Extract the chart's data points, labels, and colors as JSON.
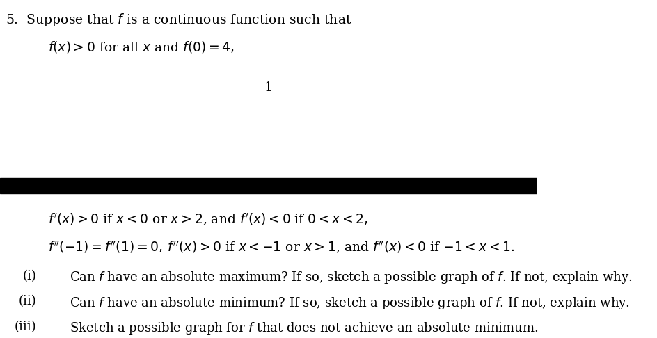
{
  "bg_color": "#ffffff",
  "title_text": "5.  Suppose that $f$ is a continuous function such that",
  "line1_text": "$f(x) > 0$ for all $x$ and $f(0) = 4,$",
  "page_number": "1",
  "line2_text": "$f'(x) > 0$ if $x < 0$ or $x > 2$, and $f'(x) < 0$ if $0 < x < 2,$",
  "line3_text": "$f''(-1) = f''(1) = 0,  f''(x) > 0$ if $x < -1$ or $x > 1$, and $f''(x) < 0$ if $-1 < x < 1.$",
  "item_i_label": "(i)",
  "item_i_text": "Can $f$ have an absolute maximum? If so, sketch a possible graph of $f$. If not, explain why.",
  "item_ii_label": "(ii)",
  "item_ii_text": "Can $f$ have an absolute minimum? If so, sketch a possible graph of $f$. If not, explain why.",
  "item_iii_label": "(iii)",
  "item_iii_text": "Sketch a possible graph for $f$ that does not achieve an absolute minimum.",
  "fontsize_title": 13.5,
  "fontsize_body": 13.5,
  "fontsize_items": 13.0
}
